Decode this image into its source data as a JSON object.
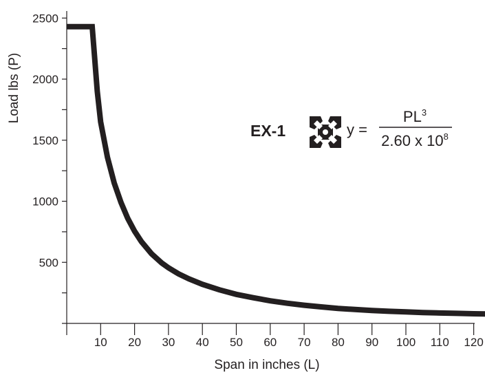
{
  "chart_data": {
    "type": "line",
    "title": "",
    "xlabel": "Span in inches (L)",
    "ylabel": "Load lbs (P)",
    "xlim": [
      0,
      125
    ],
    "ylim": [
      0,
      2500
    ],
    "x_ticks": [
      10,
      20,
      30,
      40,
      50,
      60,
      70,
      80,
      90,
      100,
      110,
      120
    ],
    "y_ticks_labeled": [
      500,
      1000,
      1500,
      2000,
      2500
    ],
    "y_ticks_minor": [
      250,
      750,
      1250,
      1750,
      2250
    ],
    "grid": false,
    "line_color": "#231f20",
    "series": [
      {
        "x": [
          0,
          7.5,
          8,
          9,
          10,
          12,
          14,
          16,
          18,
          20,
          22,
          25,
          28,
          30,
          33,
          36,
          40,
          45,
          50,
          55,
          60,
          65,
          70,
          75,
          80,
          85,
          90,
          95,
          100,
          105,
          110,
          115,
          120,
          124
        ],
        "y": [
          2430,
          2430,
          2260,
          1900,
          1650,
          1360,
          1150,
          990,
          860,
          755,
          670,
          570,
          495,
          455,
          405,
          365,
          320,
          275,
          238,
          210,
          185,
          165,
          149,
          135,
          123,
          114,
          106,
          99,
          94,
          89,
          85,
          82,
          79,
          77
        ]
      }
    ],
    "annotation": {
      "model": "EX-1",
      "icon": "extrusion-profile-icon",
      "lhs": "y =",
      "numerator_base": "PL",
      "numerator_exp": "3",
      "denominator_base": "2.60 x 10",
      "denominator_exp": "8"
    }
  }
}
